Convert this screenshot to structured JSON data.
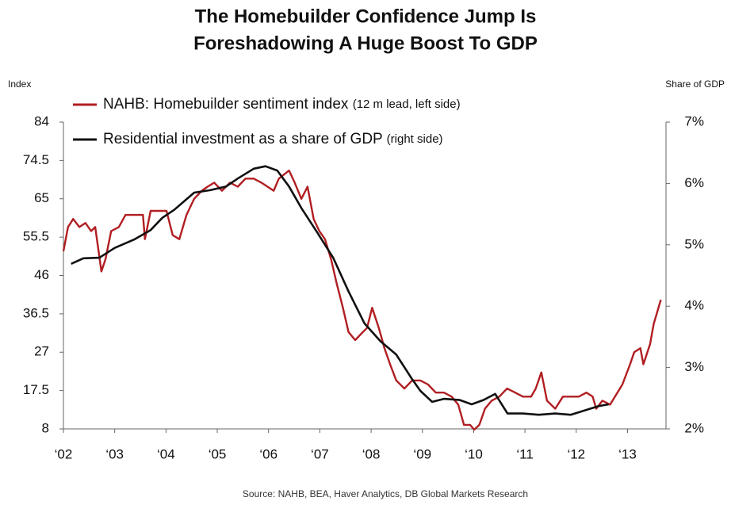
{
  "chart_data": {
    "type": "line",
    "title_lines": [
      "The Homebuilder Confidence Jump Is",
      "Foreshadowing A Huge Boost To GDP"
    ],
    "ylabel": "Index",
    "y2label": "Share of GDP",
    "source": "Source: NAHB, BEA, Haver Analytics, DB Global Markets Research",
    "xlim": [
      2002,
      2013.75
    ],
    "xticks": [
      {
        "value": 2002,
        "label": "‘02"
      },
      {
        "value": 2003,
        "label": "‘03"
      },
      {
        "value": 2004,
        "label": "‘04"
      },
      {
        "value": 2005,
        "label": "‘05"
      },
      {
        "value": 2006,
        "label": "‘06"
      },
      {
        "value": 2007,
        "label": "‘07"
      },
      {
        "value": 2008,
        "label": "‘08"
      },
      {
        "value": 2009,
        "label": "‘09"
      },
      {
        "value": 2010,
        "label": "‘10"
      },
      {
        "value": 2011,
        "label": "‘11"
      },
      {
        "value": 2012,
        "label": "‘12"
      },
      {
        "value": 2013,
        "label": "‘13"
      }
    ],
    "ylim": [
      8,
      84
    ],
    "yticks": [
      8,
      17.5,
      27,
      36.5,
      46,
      55.5,
      65,
      74.5,
      84
    ],
    "y2lim": [
      2,
      7
    ],
    "y2ticks": [
      {
        "value": 2,
        "label": "2%"
      },
      {
        "value": 3,
        "label": "3%"
      },
      {
        "value": 4,
        "label": "4%"
      },
      {
        "value": 5,
        "label": "5%"
      },
      {
        "value": 6,
        "label": "6%"
      },
      {
        "value": 7,
        "label": "7%"
      }
    ],
    "grid": false,
    "series": [
      {
        "name": "NAHB: Homebuilder sentiment index",
        "name_note": "(12 m lead, left side)",
        "color": "#b11e22",
        "axis": "y",
        "x": [
          2002.0,
          2002.09,
          2002.19,
          2002.31,
          2002.43,
          2002.54,
          2002.62,
          2002.74,
          2002.82,
          2002.93,
          2003.08,
          2003.21,
          2003.39,
          2003.55,
          2003.59,
          2003.7,
          2003.85,
          2004.01,
          2004.13,
          2004.26,
          2004.4,
          2004.55,
          2004.7,
          2004.81,
          2004.94,
          2005.09,
          2005.25,
          2005.4,
          2005.55,
          2005.71,
          2005.86,
          2006.1,
          2006.2,
          2006.4,
          2006.51,
          2006.64,
          2006.76,
          2006.88,
          2006.99,
          2007.1,
          2007.22,
          2007.33,
          2007.45,
          2007.56,
          2007.69,
          2007.84,
          2007.92,
          2008.02,
          2008.15,
          2008.26,
          2008.37,
          2008.49,
          2008.65,
          2008.8,
          2008.96,
          2009.11,
          2009.26,
          2009.42,
          2009.57,
          2009.7,
          2009.81,
          2009.93,
          2010.01,
          2010.11,
          2010.22,
          2010.35,
          2010.5,
          2010.65,
          2010.81,
          2010.96,
          2011.12,
          2011.21,
          2011.32,
          2011.43,
          2011.59,
          2011.74,
          2011.89,
          2012.05,
          2012.2,
          2012.32,
          2012.39,
          2012.51,
          2012.66,
          2012.9,
          2013.05,
          2013.13,
          2013.25,
          2013.31,
          2013.44,
          2013.51,
          2013.65
        ],
        "values": [
          52,
          58,
          60,
          58,
          59,
          57,
          58,
          47,
          50,
          57,
          58,
          61,
          61,
          61,
          55,
          62,
          62,
          62,
          56,
          55,
          61,
          65,
          67,
          68,
          69,
          67,
          69,
          68,
          70,
          70,
          69,
          67,
          70,
          72,
          69,
          65,
          68,
          60,
          57,
          55,
          50,
          44,
          38,
          32,
          30,
          32,
          33,
          38,
          33,
          28,
          24,
          20,
          18,
          20,
          20,
          19,
          17,
          17,
          16,
          14,
          9,
          9,
          7.8,
          9,
          13,
          15,
          16,
          18,
          17,
          16,
          16,
          18,
          22,
          15,
          13,
          16,
          16,
          16,
          17,
          16,
          13,
          15,
          14,
          19,
          24,
          27,
          28,
          24,
          29,
          34,
          40
        ]
      },
      {
        "name": "Residential investment as a share of GDP",
        "name_note": "(right side)",
        "color": "#111111",
        "axis": "y2",
        "x": [
          2002.15,
          2002.39,
          2002.7,
          2003.0,
          2003.39,
          2003.7,
          2003.93,
          2004.16,
          2004.55,
          2004.86,
          2005.17,
          2005.4,
          2005.71,
          2005.94,
          2006.17,
          2006.4,
          2006.64,
          2006.95,
          2007.26,
          2007.56,
          2007.87,
          2008.18,
          2008.49,
          2008.8,
          2008.96,
          2009.19,
          2009.42,
          2009.73,
          2009.96,
          2010.19,
          2010.42,
          2010.66,
          2010.96,
          2011.27,
          2011.59,
          2011.89,
          2012.2,
          2012.43,
          2012.63
        ],
        "values": [
          4.69,
          4.78,
          4.79,
          4.95,
          5.09,
          5.24,
          5.44,
          5.57,
          5.85,
          5.89,
          5.95,
          6.08,
          6.24,
          6.28,
          6.21,
          5.95,
          5.6,
          5.2,
          4.79,
          4.24,
          3.72,
          3.43,
          3.21,
          2.81,
          2.62,
          2.44,
          2.49,
          2.47,
          2.4,
          2.47,
          2.57,
          2.25,
          2.25,
          2.23,
          2.25,
          2.23,
          2.31,
          2.37,
          2.4
        ]
      }
    ]
  }
}
